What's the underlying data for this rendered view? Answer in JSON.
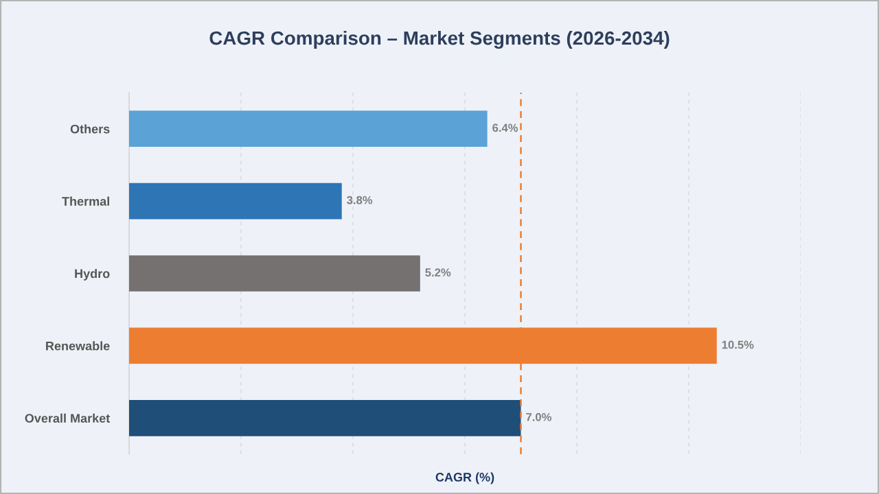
{
  "chart_data": {
    "type": "bar",
    "orientation": "horizontal",
    "title": "CAGR Comparison – Market Segments (2026-2034)",
    "xlabel": "CAGR (%)",
    "categories": [
      "Others",
      "Thermal",
      "Hydro",
      "Renewable",
      "Overall Market"
    ],
    "values": [
      6.4,
      3.8,
      5.2,
      10.5,
      7.0
    ],
    "colors": [
      "#5ba3d6",
      "#2e75b6",
      "#767171",
      "#ed7d31",
      "#1f4e79"
    ],
    "value_labels": [
      "6.4%",
      "3.8%",
      "5.2%",
      "10.5%",
      "7.0%"
    ],
    "xlim": [
      0,
      12
    ],
    "xticks": [
      {
        "value": 0,
        "label": null
      },
      {
        "value": 2,
        "label": null
      },
      {
        "value": 4,
        "label": null
      },
      {
        "value": 6,
        "label": null
      },
      {
        "value": 8,
        "label": null
      },
      {
        "value": 10,
        "label": null
      },
      {
        "value": 12,
        "label": null
      }
    ],
    "ref_lines": [
      {
        "axis": "x",
        "value": 7.0,
        "color": "#ed7d31",
        "line_style": "dashed"
      }
    ],
    "grid": "x",
    "tick_labels": "y"
  }
}
